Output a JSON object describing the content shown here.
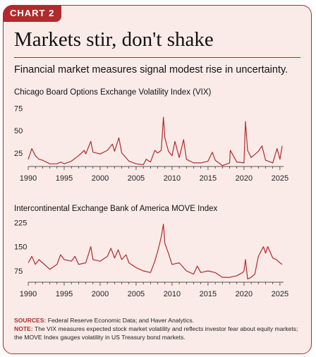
{
  "badge": "CHART 2",
  "title": "Markets stir, don't shake",
  "subtitle": "Financial market measures signal modest rise in uncertainty.",
  "colors": {
    "accent": "#b22a2e",
    "background": "#faebe8",
    "line": "#b22a2e"
  },
  "notes": {
    "sources_label": "SOURCES:",
    "sources_text": " Federal Reserve Economic Data; and Haver Analytics.",
    "note_label": "NOTE:",
    "note_text": " The VIX measures expected stock market volatility and reflects investor fear about equity markets; the MOVE Index gauges volatility in US Treasury bond markets."
  },
  "chart_data": [
    {
      "type": "line",
      "title": "Chicago Board Options Exchange Volatility Index (VIX)",
      "xlim": [
        1990,
        2025.5
      ],
      "ylim": [
        10,
        80
      ],
      "yticks": [
        25,
        50,
        75
      ],
      "xticks": [
        1990,
        1995,
        2000,
        2005,
        2010,
        2015,
        2020,
        2025
      ],
      "series": [
        {
          "x": [
            1990,
            1990.5,
            1991,
            1991.5,
            1992,
            1993,
            1994,
            1994.5,
            1995,
            1996,
            1997,
            1997.8,
            1998,
            1998.7,
            1999,
            2000,
            2001,
            2001.7,
            2002,
            2002.6,
            2003,
            2004,
            2005,
            2006,
            2006.4,
            2007,
            2007.6,
            2008,
            2008.5,
            2008.8,
            2009,
            2009.5,
            2010,
            2010.4,
            2011,
            2011.6,
            2012,
            2013,
            2014,
            2015,
            2015.6,
            2016,
            2017,
            2018,
            2018.1,
            2019,
            2020,
            2020.2,
            2020.5,
            2021,
            2022,
            2022.5,
            2023,
            2024,
            2024.6,
            2025,
            2025.3
          ],
          "y": [
            18,
            30,
            22,
            18,
            17,
            13,
            13,
            15,
            13,
            16,
            22,
            28,
            24,
            38,
            26,
            24,
            28,
            35,
            27,
            42,
            25,
            16,
            13,
            12,
            18,
            15,
            28,
            25,
            28,
            65,
            42,
            27,
            22,
            38,
            20,
            40,
            18,
            14,
            14,
            16,
            26,
            17,
            11,
            14,
            28,
            15,
            14,
            60,
            28,
            20,
            27,
            33,
            17,
            14,
            30,
            18,
            33
          ]
        }
      ]
    },
    {
      "type": "line",
      "title": "Intercontinental Exchange Bank of America MOVE Index",
      "xlim": [
        1990,
        2025.5
      ],
      "ylim": [
        40,
        230
      ],
      "yticks": [
        75,
        150,
        225
      ],
      "xticks": [
        1990,
        1995,
        2000,
        2005,
        2010,
        2015,
        2020,
        2025
      ],
      "series": [
        {
          "x": [
            1990,
            1990.5,
            1991,
            1991.5,
            1992,
            1993,
            1994,
            1994.5,
            1995,
            1996,
            1996.5,
            1997,
            1998,
            1998.7,
            1999,
            2000,
            2001,
            2001.5,
            2002,
            2002.5,
            2003,
            2003.6,
            2004,
            2005,
            2006,
            2007,
            2007.6,
            2008,
            2008.5,
            2008.8,
            2009,
            2009.5,
            2010,
            2011,
            2012,
            2013,
            2013.5,
            2014,
            2015,
            2016,
            2017,
            2018,
            2019,
            2019.8,
            2020,
            2020.2,
            2020.5,
            2021,
            2021.5,
            2022,
            2022.7,
            2023,
            2023.3,
            2024,
            2024.5,
            2025,
            2025.3
          ],
          "y": [
            100,
            120,
            95,
            110,
            100,
            80,
            95,
            125,
            110,
            105,
            120,
            95,
            100,
            150,
            110,
            105,
            120,
            145,
            115,
            140,
            110,
            125,
            100,
            85,
            75,
            70,
            105,
            135,
            180,
            220,
            160,
            130,
            95,
            100,
            75,
            65,
            90,
            70,
            75,
            70,
            55,
            55,
            60,
            70,
            75,
            110,
            50,
            55,
            65,
            120,
            150,
            130,
            150,
            115,
            110,
            100,
            95
          ]
        }
      ]
    }
  ]
}
